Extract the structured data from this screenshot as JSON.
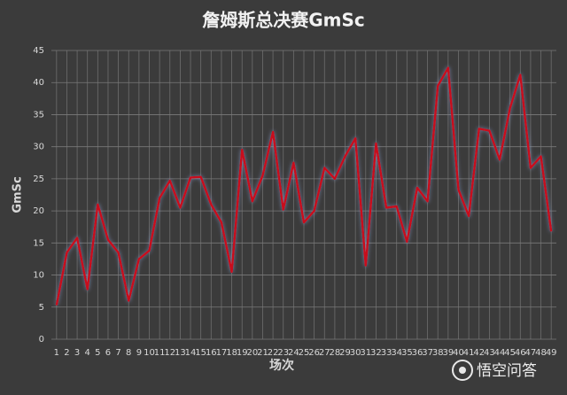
{
  "chart_data": {
    "type": "line",
    "title": "詹姆斯总决赛GmSc",
    "y_label": "GmSc",
    "x_label": "场次",
    "watermark": "悟空问答",
    "categories": [
      "1",
      "2",
      "3",
      "4",
      "5",
      "6",
      "7",
      "8",
      "9",
      "10",
      "11",
      "12",
      "13",
      "14",
      "15",
      "16",
      "17",
      "18",
      "19",
      "20",
      "21",
      "22",
      "23",
      "24",
      "25",
      "26",
      "27",
      "28",
      "29",
      "30",
      "31",
      "32",
      "33",
      "34",
      "35",
      "36",
      "37",
      "38",
      "39",
      "40",
      "41",
      "42",
      "43",
      "44",
      "45",
      "46",
      "47",
      "48",
      "49"
    ],
    "series": [
      {
        "name": "GmSc",
        "color": "#c8101e",
        "values": [
          5.3,
          13.5,
          15.8,
          7.8,
          21,
          15.5,
          13.5,
          6,
          12.5,
          13.8,
          22,
          24.7,
          20.5,
          25.2,
          25.3,
          21,
          18.2,
          10.5,
          29.5,
          21.5,
          25.5,
          32.3,
          20.2,
          27.5,
          18.2,
          20,
          26.7,
          25,
          28.5,
          31.3,
          11.5,
          30.5,
          20.5,
          20.7,
          15.2,
          23.6,
          21.5,
          39.5,
          42.3,
          23.3,
          19.2,
          32.8,
          32.5,
          28,
          36,
          41.2,
          26.7,
          28.5,
          16.8
        ]
      }
    ],
    "ylim": [
      0,
      45
    ],
    "yticks": [
      0,
      5,
      10,
      15,
      20,
      25,
      30,
      35,
      40,
      45
    ],
    "grid": true
  }
}
